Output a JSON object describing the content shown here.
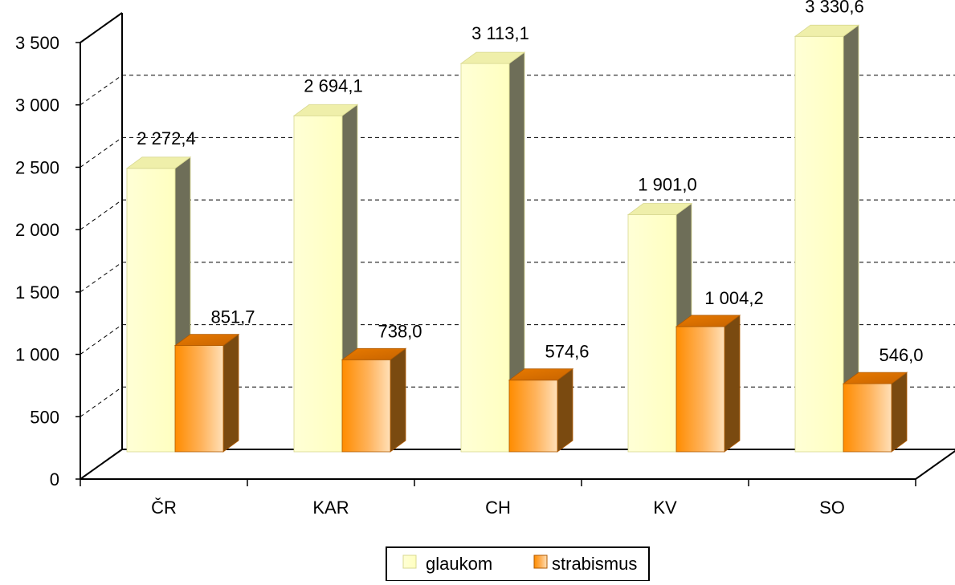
{
  "chart_data": {
    "type": "bar",
    "title": "",
    "xlabel": "",
    "ylabel": "",
    "categories": [
      "ČR",
      "KAR",
      "CH",
      "KV",
      "SO"
    ],
    "series": [
      {
        "name": "glaukom",
        "values": [
          2272.4,
          2694.1,
          3113.1,
          1901.0,
          3330.6
        ],
        "value_labels": [
          "2 272,4",
          "2 694,1",
          "3 113,1",
          "1 901,0",
          "3 330,6"
        ],
        "color": "#FFFFCC"
      },
      {
        "name": "strabismus",
        "values": [
          851.7,
          738.0,
          574.6,
          1004.2,
          546.0
        ],
        "value_labels": [
          "851,7",
          "738,0",
          "574,6",
          "1 004,2",
          "546,0"
        ],
        "color": "#FF9900"
      }
    ],
    "ylim": [
      0,
      3500
    ],
    "yticks": [
      0,
      500,
      1000,
      1500,
      2000,
      2500,
      3000,
      3500
    ],
    "ytick_labels": [
      "0",
      "500",
      "1 000",
      "1 500",
      "2 000",
      "2 500",
      "3 000",
      "3 500"
    ],
    "grid": true,
    "three_d": true,
    "legend_position": "bottom"
  }
}
